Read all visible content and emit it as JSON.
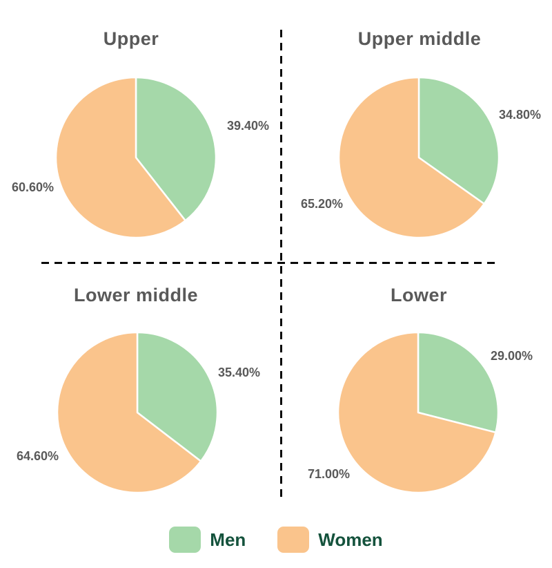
{
  "chart_data": {
    "type": "pie",
    "layout": "2x2-grid-with-dashed-dividers",
    "series_labels": [
      "Men",
      "Women"
    ],
    "colors": {
      "men": "#a5d8a9",
      "women": "#fac48c",
      "title": "#595959",
      "data_label": "#595959",
      "legend_text": "#14523c",
      "divider": "#0a0a0a"
    },
    "slice_start": "12-oclock, Men slice first, clockwise",
    "legend_position": "bottom-center",
    "charts": [
      {
        "title": "Upper",
        "values": [
          39.4,
          60.6
        ],
        "labels": [
          "39.40%",
          "60.60%"
        ]
      },
      {
        "title": "Upper middle",
        "values": [
          34.8,
          65.2
        ],
        "labels": [
          "34.80%",
          "65.20%"
        ]
      },
      {
        "title": "Lower middle",
        "values": [
          35.4,
          64.6
        ],
        "labels": [
          "35.40%",
          "64.60%"
        ]
      },
      {
        "title": "Lower",
        "values": [
          29.0,
          71.0
        ],
        "labels": [
          "29.00%",
          "71.00%"
        ]
      }
    ]
  },
  "legend": {
    "items": [
      {
        "label": "Men",
        "color": "#a5d8a9"
      },
      {
        "label": "Women",
        "color": "#fac48c"
      }
    ]
  }
}
